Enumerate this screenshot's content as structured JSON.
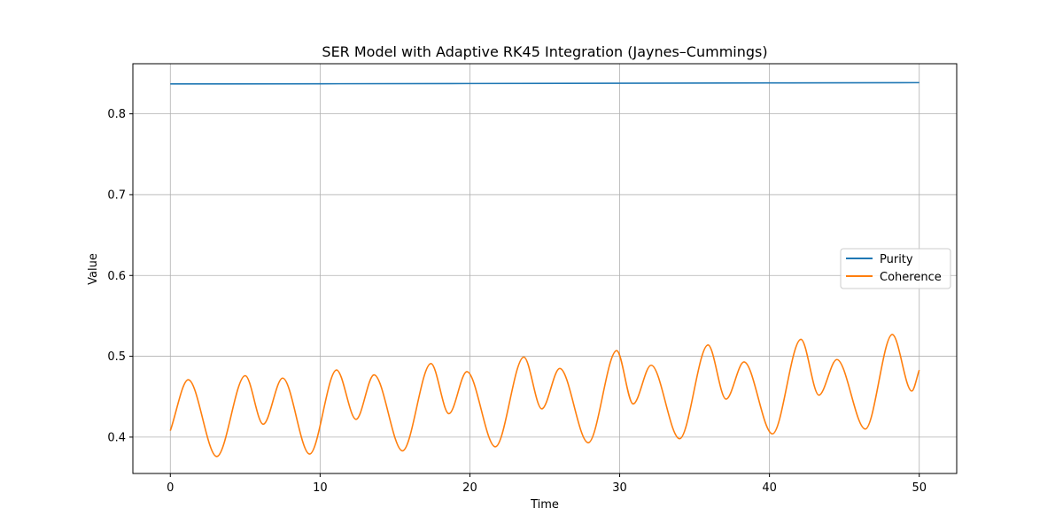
{
  "chart_data": {
    "type": "line",
    "title": "SER Model with Adaptive RK45 Integration (Jaynes–Cummings)",
    "xlabel": "Time",
    "ylabel": "Value",
    "xlim": [
      -2.5,
      52.5
    ],
    "ylim": [
      0.355,
      0.862
    ],
    "xticks": [
      0,
      10,
      20,
      30,
      40,
      50
    ],
    "yticks": [
      0.4,
      0.5,
      0.6,
      0.7,
      0.8
    ],
    "grid": true,
    "legend_position": "center-right",
    "series": [
      {
        "name": "Purity",
        "color": "#1f77b4",
        "x": [
          0,
          10,
          20,
          30,
          40,
          50
        ],
        "y": [
          0.837,
          0.8372,
          0.8375,
          0.8378,
          0.8382,
          0.8386
        ]
      },
      {
        "name": "Coherence",
        "color": "#ff7f0e",
        "x": [
          0,
          1.2,
          3.1,
          5.0,
          6.2,
          7.5,
          9.3,
          11.1,
          12.4,
          13.6,
          15.5,
          17.4,
          18.6,
          19.8,
          21.7,
          23.6,
          24.8,
          26.0,
          27.9,
          29.8,
          30.9,
          32.1,
          34.0,
          35.9,
          37.1,
          38.3,
          40.2,
          42.1,
          43.3,
          44.5,
          46.4,
          48.2,
          49.5,
          50.0
        ],
        "y": [
          0.408,
          0.471,
          0.376,
          0.476,
          0.416,
          0.473,
          0.379,
          0.483,
          0.422,
          0.477,
          0.383,
          0.491,
          0.429,
          0.481,
          0.388,
          0.499,
          0.435,
          0.485,
          0.393,
          0.507,
          0.441,
          0.489,
          0.398,
          0.514,
          0.447,
          0.493,
          0.404,
          0.521,
          0.452,
          0.496,
          0.41,
          0.527,
          0.457,
          0.483
        ]
      }
    ]
  }
}
